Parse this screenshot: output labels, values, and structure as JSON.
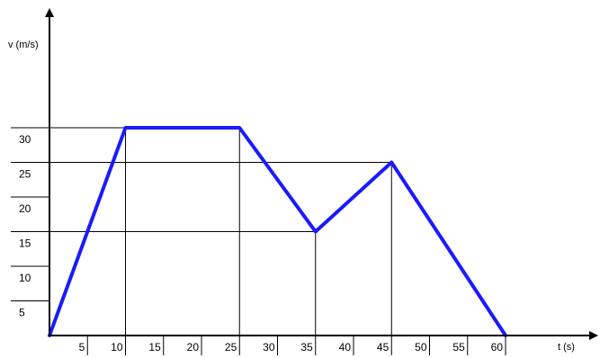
{
  "chart_data": {
    "type": "line",
    "xlabel": "t (s)",
    "ylabel": "v (m/s)",
    "xlim": [
      0,
      60
    ],
    "ylim": [
      0,
      30
    ],
    "xticks": [
      5,
      10,
      15,
      20,
      25,
      30,
      35,
      40,
      45,
      50,
      55,
      60
    ],
    "yticks": [
      5,
      10,
      15,
      20,
      25,
      30
    ],
    "series": [
      {
        "x": [
          0,
          10,
          25,
          35,
          45,
          60
        ],
        "y": [
          0,
          30,
          30,
          15,
          25,
          0
        ]
      }
    ],
    "line_color": "#1a1aff",
    "grid": "reference lines at key points"
  }
}
